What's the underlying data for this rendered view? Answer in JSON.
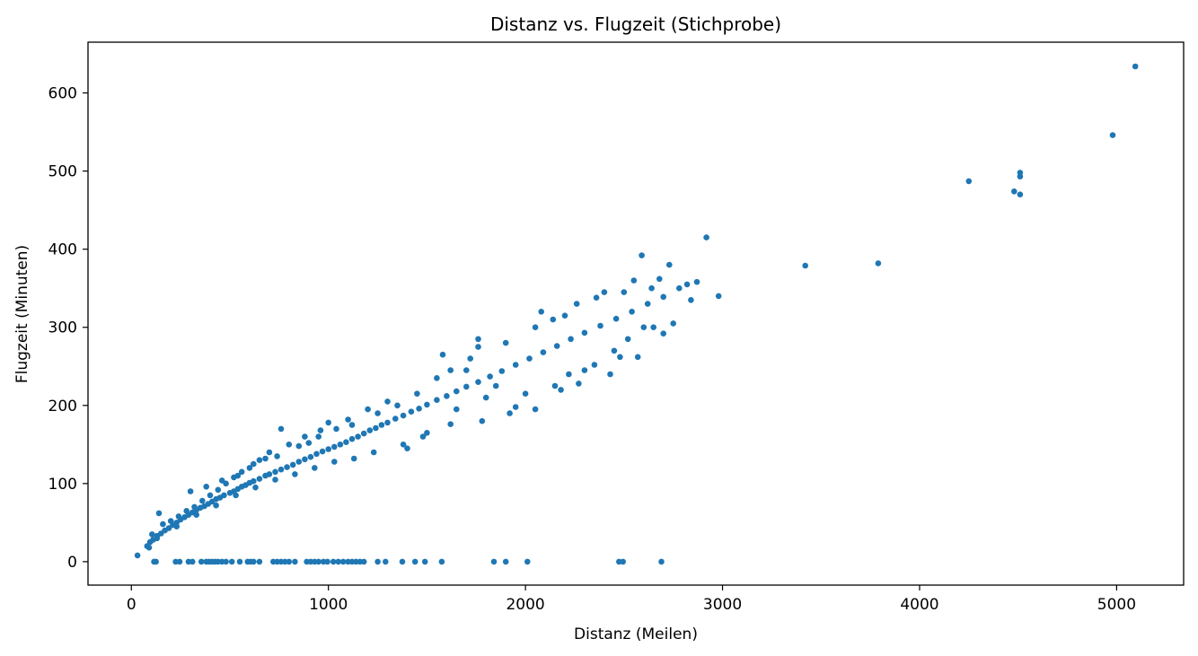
{
  "chart_data": {
    "type": "scatter",
    "title": "Distanz vs. Flugzeit (Stichprobe)",
    "xlabel": "Distanz (Meilen)",
    "ylabel": "Flugzeit (Minuten)",
    "xlim": [
      -220,
      5340
    ],
    "ylim": [
      -30,
      665
    ],
    "xticks": [
      0,
      1000,
      2000,
      3000,
      4000,
      5000
    ],
    "yticks": [
      0,
      100,
      200,
      300,
      400,
      500,
      600
    ],
    "grid": false,
    "marker_color": "#1f77b4",
    "series": [
      {
        "points": [
          [
            31,
            8
          ],
          [
            80,
            20
          ],
          [
            95,
            25
          ],
          [
            110,
            28
          ],
          [
            130,
            33
          ],
          [
            150,
            36
          ],
          [
            170,
            40
          ],
          [
            190,
            43
          ],
          [
            210,
            47
          ],
          [
            230,
            50
          ],
          [
            250,
            54
          ],
          [
            270,
            57
          ],
          [
            290,
            60
          ],
          [
            310,
            63
          ],
          [
            330,
            66
          ],
          [
            350,
            69
          ],
          [
            370,
            71
          ],
          [
            390,
            74
          ],
          [
            410,
            77
          ],
          [
            430,
            80
          ],
          [
            450,
            82
          ],
          [
            470,
            85
          ],
          [
            500,
            88
          ],
          [
            520,
            90
          ],
          [
            540,
            93
          ],
          [
            560,
            96
          ],
          [
            580,
            98
          ],
          [
            600,
            101
          ],
          [
            620,
            103
          ],
          [
            650,
            106
          ],
          [
            680,
            110
          ],
          [
            700,
            112
          ],
          [
            730,
            115
          ],
          [
            760,
            118
          ],
          [
            790,
            121
          ],
          [
            820,
            124
          ],
          [
            850,
            128
          ],
          [
            880,
            131
          ],
          [
            910,
            134
          ],
          [
            940,
            138
          ],
          [
            970,
            141
          ],
          [
            1000,
            144
          ],
          [
            1030,
            147
          ],
          [
            1060,
            150
          ],
          [
            1090,
            153
          ],
          [
            1120,
            157
          ],
          [
            1150,
            160
          ],
          [
            1180,
            164
          ],
          [
            1210,
            168
          ],
          [
            1240,
            171
          ],
          [
            1270,
            175
          ],
          [
            1300,
            178
          ],
          [
            1340,
            183
          ],
          [
            1380,
            187
          ],
          [
            1420,
            192
          ],
          [
            1460,
            196
          ],
          [
            1500,
            201
          ],
          [
            1550,
            207
          ],
          [
            1600,
            212
          ],
          [
            1650,
            218
          ],
          [
            1700,
            224
          ],
          [
            1760,
            230
          ],
          [
            1820,
            237
          ],
          [
            1880,
            244
          ],
          [
            1950,
            252
          ],
          [
            2020,
            260
          ],
          [
            2090,
            268
          ],
          [
            2160,
            276
          ],
          [
            2230,
            285
          ],
          [
            2300,
            293
          ],
          [
            2380,
            302
          ],
          [
            2460,
            311
          ],
          [
            2540,
            320
          ],
          [
            2620,
            330
          ],
          [
            2700,
            339
          ],
          [
            2780,
            350
          ],
          [
            2870,
            358
          ],
          [
            2980,
            340
          ],
          [
            2918,
            415
          ],
          [
            2590,
            392
          ],
          [
            2730,
            380
          ],
          [
            2820,
            355
          ],
          [
            2640,
            350
          ],
          [
            2500,
            345
          ],
          [
            2360,
            338
          ],
          [
            2200,
            315
          ],
          [
            2050,
            300
          ],
          [
            1900,
            280
          ],
          [
            1760,
            275
          ],
          [
            1580,
            265
          ],
          [
            1700,
            245
          ],
          [
            1850,
            225
          ],
          [
            2000,
            215
          ],
          [
            2150,
            225
          ],
          [
            2300,
            245
          ],
          [
            2450,
            270
          ],
          [
            2520,
            285
          ],
          [
            2650,
            300
          ],
          [
            2750,
            305
          ],
          [
            2600,
            300
          ],
          [
            2480,
            262
          ],
          [
            2350,
            252
          ],
          [
            2220,
            240
          ],
          [
            1950,
            198
          ],
          [
            1800,
            210
          ],
          [
            1650,
            195
          ],
          [
            1500,
            165
          ],
          [
            1400,
            145
          ],
          [
            1300,
            205
          ],
          [
            1200,
            195
          ],
          [
            1100,
            182
          ],
          [
            1000,
            178
          ],
          [
            950,
            160
          ],
          [
            900,
            152
          ],
          [
            850,
            148
          ],
          [
            760,
            170
          ],
          [
            700,
            140
          ],
          [
            650,
            130
          ],
          [
            600,
            120
          ],
          [
            560,
            115
          ],
          [
            520,
            108
          ],
          [
            480,
            100
          ],
          [
            440,
            92
          ],
          [
            400,
            85
          ],
          [
            360,
            78
          ],
          [
            320,
            70
          ],
          [
            280,
            65
          ],
          [
            240,
            58
          ],
          [
            200,
            52
          ],
          [
            160,
            48
          ],
          [
            140,
            62
          ],
          [
            300,
            90
          ],
          [
            380,
            96
          ],
          [
            460,
            104
          ],
          [
            540,
            110
          ],
          [
            620,
            125
          ],
          [
            680,
            132
          ],
          [
            740,
            135
          ],
          [
            800,
            150
          ],
          [
            880,
            160
          ],
          [
            960,
            168
          ],
          [
            1040,
            170
          ],
          [
            1120,
            175
          ],
          [
            1250,
            190
          ],
          [
            1350,
            200
          ],
          [
            1450,
            215
          ],
          [
            1550,
            235
          ],
          [
            1620,
            245
          ],
          [
            1720,
            260
          ],
          [
            1760,
            285
          ],
          [
            2080,
            320
          ],
          [
            2140,
            310
          ],
          [
            2260,
            330
          ],
          [
            2400,
            345
          ],
          [
            2550,
            360
          ],
          [
            2680,
            362
          ],
          [
            2840,
            335
          ],
          [
            2700,
            292
          ],
          [
            2570,
            262
          ],
          [
            2430,
            240
          ],
          [
            2270,
            228
          ],
          [
            2180,
            220
          ],
          [
            2050,
            195
          ],
          [
            1920,
            190
          ],
          [
            1780,
            180
          ],
          [
            1620,
            176
          ],
          [
            1480,
            160
          ],
          [
            1380,
            150
          ],
          [
            1230,
            140
          ],
          [
            1130,
            132
          ],
          [
            1030,
            128
          ],
          [
            930,
            120
          ],
          [
            830,
            112
          ],
          [
            730,
            105
          ],
          [
            630,
            95
          ],
          [
            530,
            85
          ],
          [
            430,
            72
          ],
          [
            330,
            60
          ],
          [
            230,
            45
          ],
          [
            130,
            30
          ],
          [
            90,
            18
          ],
          [
            105,
            35
          ],
          [
            3420,
            379
          ],
          [
            3790,
            382
          ],
          [
            4250,
            487
          ],
          [
            4480,
            474
          ],
          [
            4510,
            470
          ],
          [
            4510,
            493
          ],
          [
            4510,
            498
          ],
          [
            4980,
            546
          ],
          [
            5095,
            634
          ],
          [
            115,
            0
          ],
          [
            125,
            0
          ],
          [
            225,
            0
          ],
          [
            245,
            0
          ],
          [
            290,
            0
          ],
          [
            310,
            0
          ],
          [
            355,
            0
          ],
          [
            380,
            0
          ],
          [
            395,
            0
          ],
          [
            410,
            0
          ],
          [
            425,
            0
          ],
          [
            440,
            0
          ],
          [
            460,
            0
          ],
          [
            480,
            0
          ],
          [
            510,
            0
          ],
          [
            550,
            0
          ],
          [
            590,
            0
          ],
          [
            605,
            0
          ],
          [
            620,
            0
          ],
          [
            650,
            0
          ],
          [
            720,
            0
          ],
          [
            740,
            0
          ],
          [
            760,
            0
          ],
          [
            780,
            0
          ],
          [
            800,
            0
          ],
          [
            830,
            0
          ],
          [
            890,
            0
          ],
          [
            910,
            0
          ],
          [
            930,
            0
          ],
          [
            950,
            0
          ],
          [
            975,
            0
          ],
          [
            995,
            0
          ],
          [
            1025,
            0
          ],
          [
            1050,
            0
          ],
          [
            1075,
            0
          ],
          [
            1100,
            0
          ],
          [
            1120,
            0
          ],
          [
            1140,
            0
          ],
          [
            1160,
            0
          ],
          [
            1180,
            0
          ],
          [
            1250,
            0
          ],
          [
            1290,
            0
          ],
          [
            1375,
            0
          ],
          [
            1440,
            0
          ],
          [
            1490,
            0
          ],
          [
            1575,
            0
          ],
          [
            1840,
            0
          ],
          [
            1900,
            0
          ],
          [
            2010,
            0
          ],
          [
            2475,
            0
          ],
          [
            2495,
            0
          ],
          [
            2690,
            0
          ]
        ]
      }
    ]
  }
}
